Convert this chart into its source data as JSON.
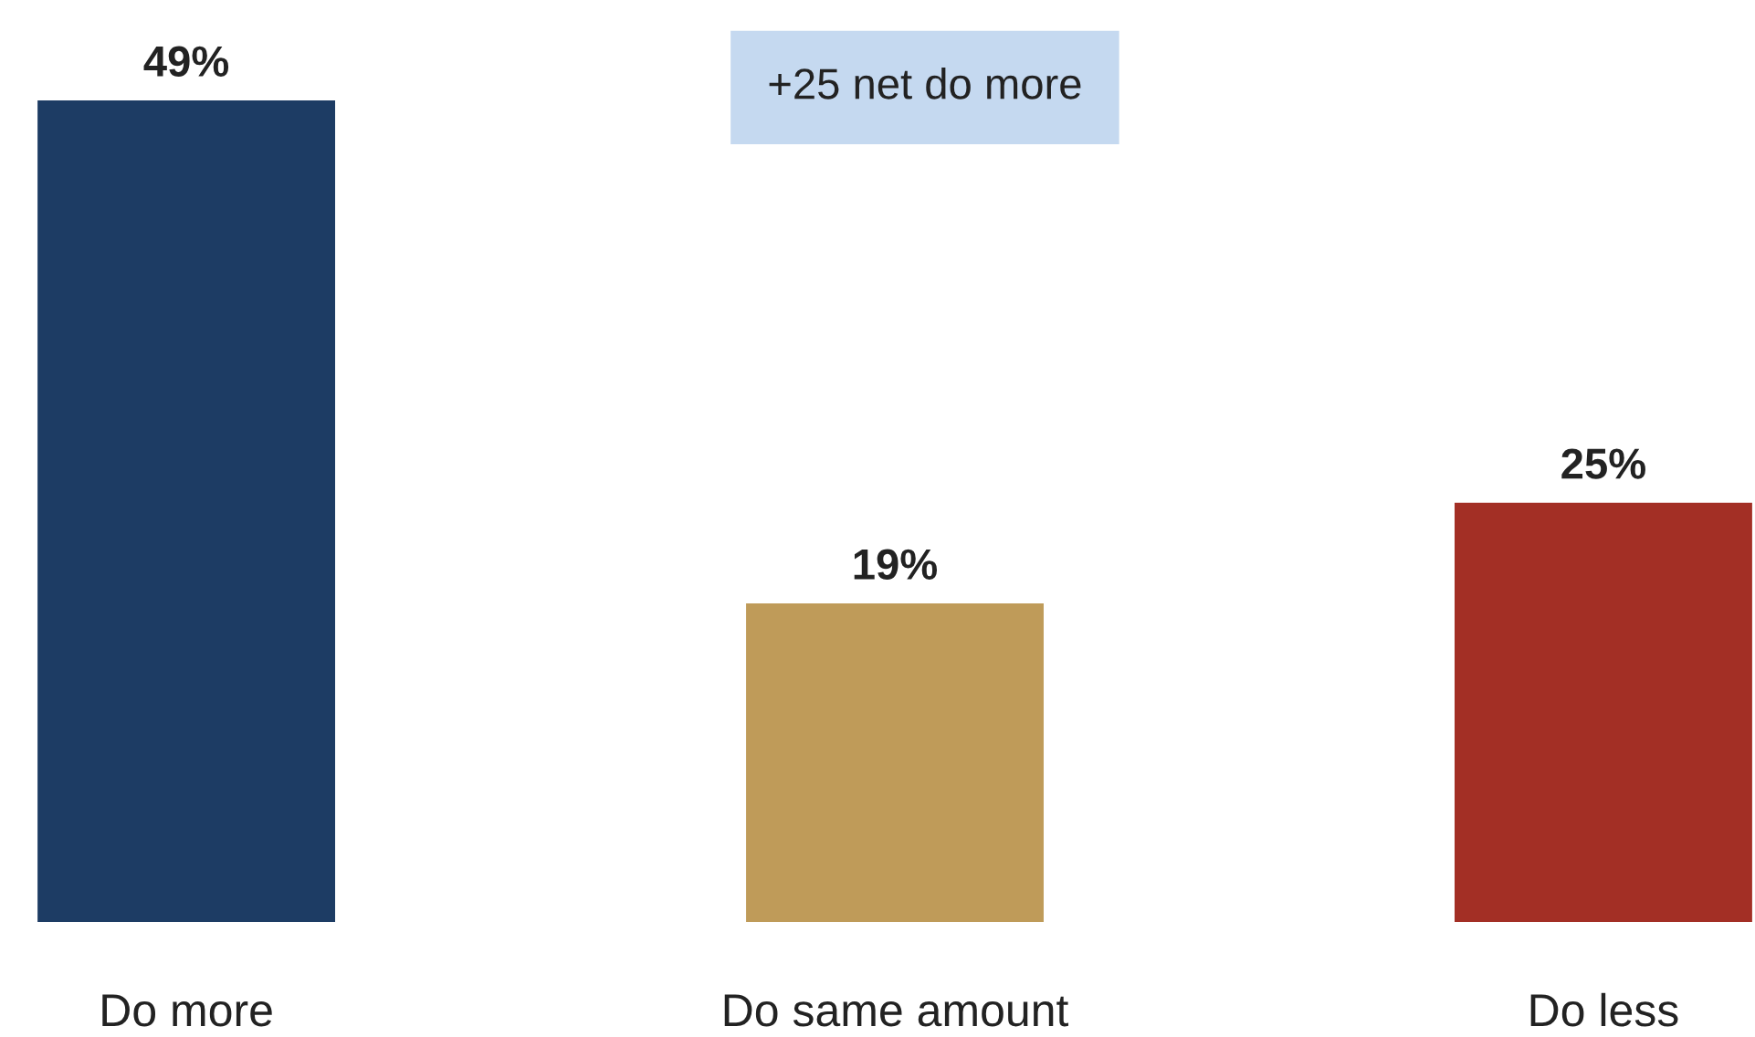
{
  "chart_data": {
    "type": "bar",
    "categories": [
      "Do more",
      "Do same amount",
      "Do less"
    ],
    "values": [
      49,
      19,
      25
    ],
    "colors": [
      "#1d3c64",
      "#bf9b59",
      "#a32f25"
    ],
    "value_labels": [
      "49%",
      "19%",
      "25%"
    ],
    "annotations": [
      "+25 net do more"
    ],
    "grid": false,
    "legend": false
  }
}
